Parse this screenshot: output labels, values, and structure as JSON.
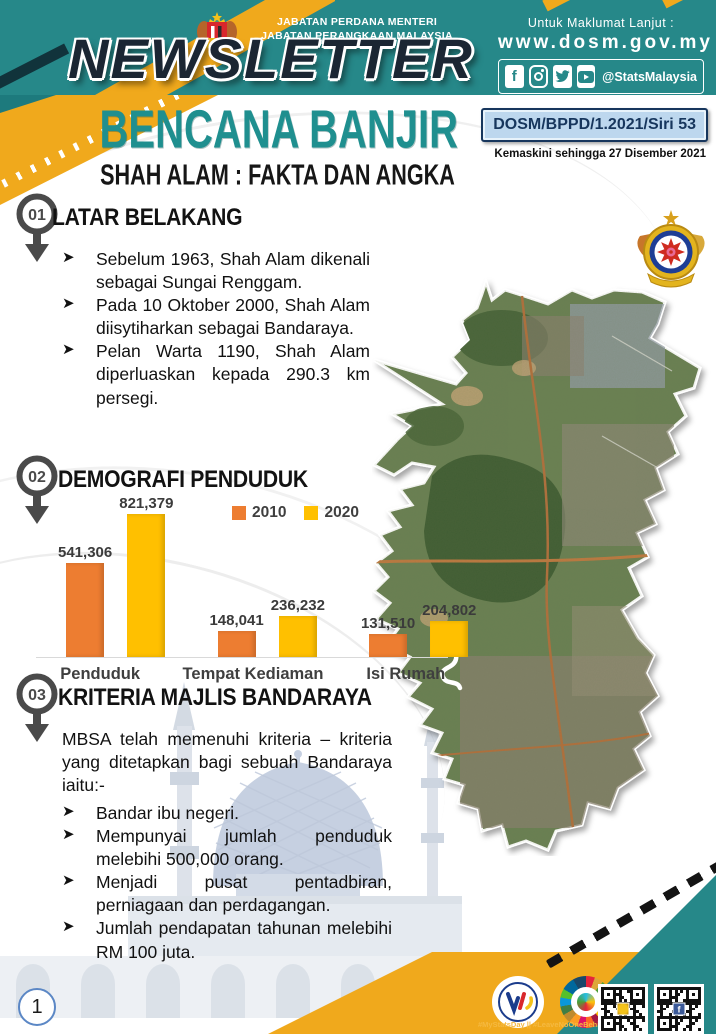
{
  "header": {
    "dept_line1": "JABATAN PERDANA MENTERI",
    "dept_line2": "JABATAN PERANGKAAN MALAYSIA",
    "newsletter_title": "NEWSLETTER",
    "info_label": "Untuk Maklumat Lanjut :",
    "website": "www.dosm.gov.my",
    "social_handle": "@StatsMalaysia",
    "social_icons": [
      "facebook-icon",
      "instagram-icon",
      "twitter-icon",
      "youtube-icon"
    ]
  },
  "masthead": {
    "title": "BENCANA BANJIR",
    "subtitle": "SHAH ALAM : FAKTA DAN ANGKA",
    "series_ref": "DOSM/BPPD/1.2021/Siri 53",
    "updated": "Kemaskini sehingga 27 Disember 2021"
  },
  "sections": [
    {
      "number": "01",
      "title": "LATAR BELAKANG",
      "bullets": [
        "Sebelum 1963, Shah Alam dikenali sebagai Sungai Renggam.",
        "Pada 10 Oktober 2000, Shah Alam diisytiharkan sebagai Bandaraya.",
        "Pelan Warta 1190, Shah Alam diperluaskan kepada 290.3 km persegi."
      ]
    },
    {
      "number": "02",
      "title": "DEMOGRAFI PENDUDUK"
    },
    {
      "number": "03",
      "title": "KRITERIA MAJLIS BANDARAYA",
      "intro": "MBSA telah memenuhi kriteria – kriteria yang ditetapkan bagi sebuah Bandaraya iaitu:-",
      "bullets": [
        "Bandar ibu negeri.",
        "Mempunyai jumlah penduduk melebihi 500,000 orang.",
        "Menjadi pusat pentadbiran, perniagaan dan perdagangan.",
        "Jumlah pendapatan tahunan melebihi RM 100 juta."
      ]
    }
  ],
  "chart_data": {
    "type": "bar",
    "categories": [
      "Penduduk",
      "Tempat Kediaman",
      "Isi Rumah"
    ],
    "series": [
      {
        "name": "2010",
        "color": "#ED7D31",
        "values": [
          541306,
          148041,
          131510
        ]
      },
      {
        "name": "2020",
        "color": "#FFC000",
        "values": [
          821379,
          236232,
          204802
        ]
      }
    ],
    "title": "",
    "xlabel": "",
    "ylabel": "",
    "ylim": [
      0,
      900000
    ],
    "grid": false,
    "legend_position": "top-right",
    "data_labels": true
  },
  "map": {
    "crest_name": "MAJLIS BANDARAYA SHAH ALAM"
  },
  "footer": {
    "page_number": "1",
    "hashtags": "#MyStatsDay || #LeaveNoOneBehind"
  },
  "colors": {
    "teal": "#268889",
    "gold": "#F0A91C",
    "title_teal": "#1F8F8F",
    "bar_2010": "#ED7D31",
    "bar_2020": "#FFC000",
    "badge_bg": "#BDD7EE",
    "badge_text": "#17365D",
    "pin_gray": "#4a4a4a"
  }
}
